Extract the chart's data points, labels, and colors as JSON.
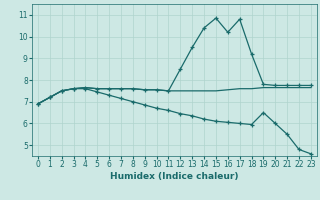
{
  "xlabel": "Humidex (Indice chaleur)",
  "bg_color": "#cde8e4",
  "grid_color": "#b0d4ce",
  "line_color": "#1a6b6b",
  "xlim": [
    -0.5,
    23.5
  ],
  "ylim": [
    4.5,
    11.5
  ],
  "yticks": [
    5,
    6,
    7,
    8,
    9,
    10,
    11
  ],
  "xticks": [
    0,
    1,
    2,
    3,
    4,
    5,
    6,
    7,
    8,
    9,
    10,
    11,
    12,
    13,
    14,
    15,
    16,
    17,
    18,
    19,
    20,
    21,
    22,
    23
  ],
  "line1_x": [
    0,
    1,
    2,
    3,
    4,
    5,
    6,
    7,
    8,
    9,
    10,
    11,
    12,
    13,
    14,
    15,
    16,
    17,
    18,
    19,
    20,
    21,
    22,
    23
  ],
  "line1_y": [
    6.9,
    7.2,
    7.5,
    7.6,
    7.65,
    7.6,
    7.6,
    7.6,
    7.6,
    7.55,
    7.55,
    7.5,
    8.5,
    9.5,
    10.4,
    10.85,
    10.2,
    10.8,
    9.2,
    7.8,
    7.75,
    7.75,
    7.75,
    7.75
  ],
  "line2_x": [
    0,
    1,
    2,
    3,
    4,
    5,
    6,
    7,
    8,
    9,
    10,
    11,
    12,
    13,
    14,
    15,
    16,
    17,
    18,
    19,
    20,
    21,
    22,
    23
  ],
  "line2_y": [
    6.9,
    7.2,
    7.5,
    7.6,
    7.65,
    7.6,
    7.6,
    7.6,
    7.6,
    7.55,
    7.55,
    7.5,
    7.5,
    7.5,
    7.5,
    7.5,
    7.55,
    7.6,
    7.6,
    7.65,
    7.65,
    7.65,
    7.65,
    7.65
  ],
  "line3_x": [
    0,
    1,
    2,
    3,
    4,
    5,
    6,
    7,
    8,
    9,
    10,
    11,
    12,
    13,
    14,
    15,
    16,
    17,
    18,
    19,
    20,
    21,
    22,
    23
  ],
  "line3_y": [
    6.9,
    7.2,
    7.5,
    7.6,
    7.6,
    7.45,
    7.3,
    7.15,
    7.0,
    6.85,
    6.7,
    6.6,
    6.45,
    6.35,
    6.2,
    6.1,
    6.05,
    6.0,
    5.95,
    6.5,
    6.0,
    5.5,
    4.8,
    4.6
  ]
}
